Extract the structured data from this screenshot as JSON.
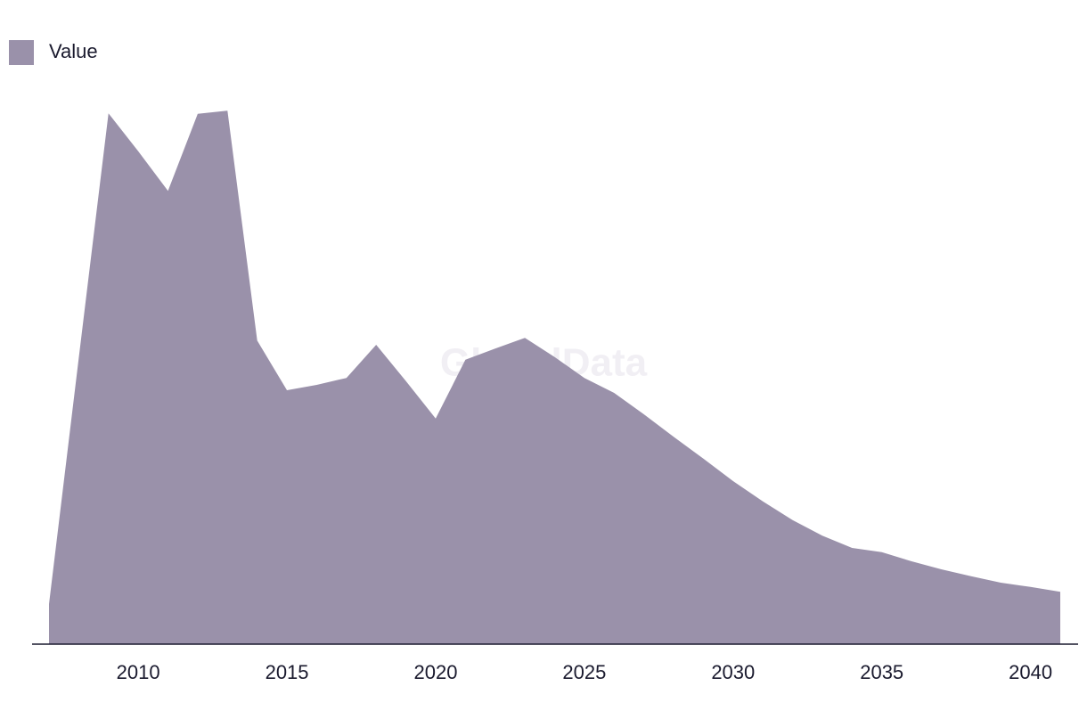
{
  "chart_data": {
    "type": "area",
    "watermark": "GlobalData",
    "x": [
      2007,
      2008,
      2009,
      2010,
      2011,
      2012,
      2013,
      2014,
      2015,
      2016,
      2017,
      2018,
      2019,
      2020,
      2021,
      2022,
      2023,
      2024,
      2025,
      2026,
      2027,
      2028,
      2029,
      2030,
      2031,
      2032,
      2033,
      2034,
      2035,
      2036,
      2037,
      2038,
      2039,
      2040,
      2041
    ],
    "series": [
      {
        "name": "Value",
        "color": "#9a91aa",
        "values": [
          7.5,
          53.5,
          99.3,
          92.2,
          84.8,
          99.2,
          99.8,
          56.8,
          47.5,
          48.5,
          49.8,
          56,
          49.2,
          42.2,
          53.2,
          55.3,
          57.3,
          53.7,
          49.8,
          47,
          43,
          38.8,
          34.7,
          30.5,
          26.7,
          23.2,
          20.3,
          18,
          17.2,
          15.5,
          14,
          12.7,
          11.5,
          10.7,
          9.8
        ]
      }
    ],
    "xlim": [
      2007,
      2041
    ],
    "xticks": [
      2010,
      2015,
      2020,
      2025,
      2030,
      2035,
      2040
    ]
  }
}
